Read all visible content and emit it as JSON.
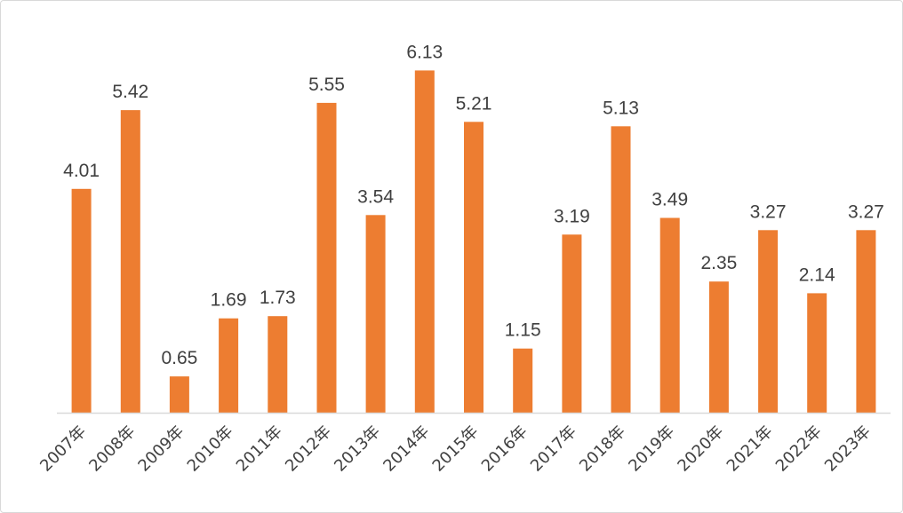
{
  "chart_data": {
    "type": "bar",
    "title": "",
    "xlabel": "",
    "ylabel": "",
    "categories": [
      "2007年",
      "2008年",
      "2009年",
      "2010年",
      "2011年",
      "2012年",
      "2013年",
      "2014年",
      "2015年",
      "2016年",
      "2017年",
      "2018年",
      "2019年",
      "2020年",
      "2021年",
      "2022年",
      "2023年"
    ],
    "values": [
      4.01,
      5.42,
      0.65,
      1.69,
      1.73,
      5.55,
      3.54,
      6.13,
      5.21,
      1.15,
      3.19,
      5.13,
      3.49,
      2.35,
      3.27,
      2.14,
      3.27
    ],
    "value_labels": [
      "4.01",
      "5.42",
      "0.65",
      "1.69",
      "1.73",
      "5.55",
      "3.54",
      "6.13",
      "5.21",
      "1.15",
      "3.19",
      "5.13",
      "3.49",
      "2.35",
      "3.27",
      "2.14",
      "3.27"
    ],
    "ylim": [
      0,
      7
    ],
    "grid": false,
    "legend": "none",
    "bar_color": "#ED7D31",
    "axis_color": "#D9D9D9"
  }
}
